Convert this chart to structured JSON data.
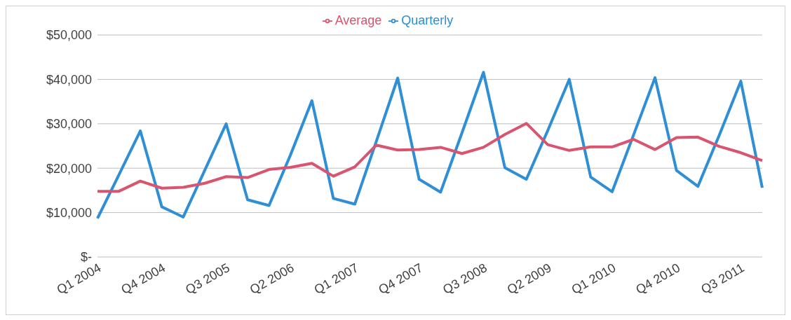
{
  "chart_data": {
    "type": "line",
    "categories": [
      "Q1 2004",
      null,
      null,
      "Q4 2004",
      null,
      null,
      "Q3 2005",
      null,
      null,
      "Q2 2006",
      null,
      null,
      "Q1 2007",
      null,
      null,
      "Q4 2007",
      null,
      null,
      "Q3 2008",
      null,
      null,
      "Q2 2009",
      null,
      null,
      "Q1 2010",
      null,
      null,
      "Q4 2010",
      null,
      null,
      "Q3 2011",
      null
    ],
    "series": [
      {
        "name": "Quarterly",
        "color": "#2e8fd6",
        "values": [
          8700,
          18500,
          28400,
          11300,
          9000,
          19500,
          30000,
          12900,
          11600,
          23000,
          35200,
          13200,
          11900,
          26000,
          40300,
          17500,
          14600,
          28000,
          41600,
          20100,
          17500,
          28500,
          40000,
          18000,
          14700,
          27500,
          40400,
          19500,
          15900,
          27500,
          39600,
          15600
        ]
      },
      {
        "name": "Average",
        "color": "#d9546e",
        "values": [
          14800,
          14800,
          17100,
          15500,
          15700,
          16600,
          18100,
          17900,
          19700,
          20200,
          21100,
          18200,
          20300,
          25200,
          24100,
          24200,
          24700,
          23300,
          24700,
          27600,
          30100,
          25300,
          24000,
          24800,
          24800,
          26500,
          24200,
          26900,
          27000,
          24900,
          23500,
          21700
        ]
      }
    ],
    "ylim": [
      0,
      50000
    ],
    "yticks": [
      {
        "value": 0,
        "label": "$-"
      },
      {
        "value": 10000,
        "label": "$10,000"
      },
      {
        "value": 20000,
        "label": "$20,000"
      },
      {
        "value": 30000,
        "label": "$30,000"
      },
      {
        "value": 40000,
        "label": "$40,000"
      },
      {
        "value": 50000,
        "label": "$50,000"
      }
    ],
    "grid": "y",
    "legend": "top",
    "marker": "none",
    "line_style": "solid"
  }
}
